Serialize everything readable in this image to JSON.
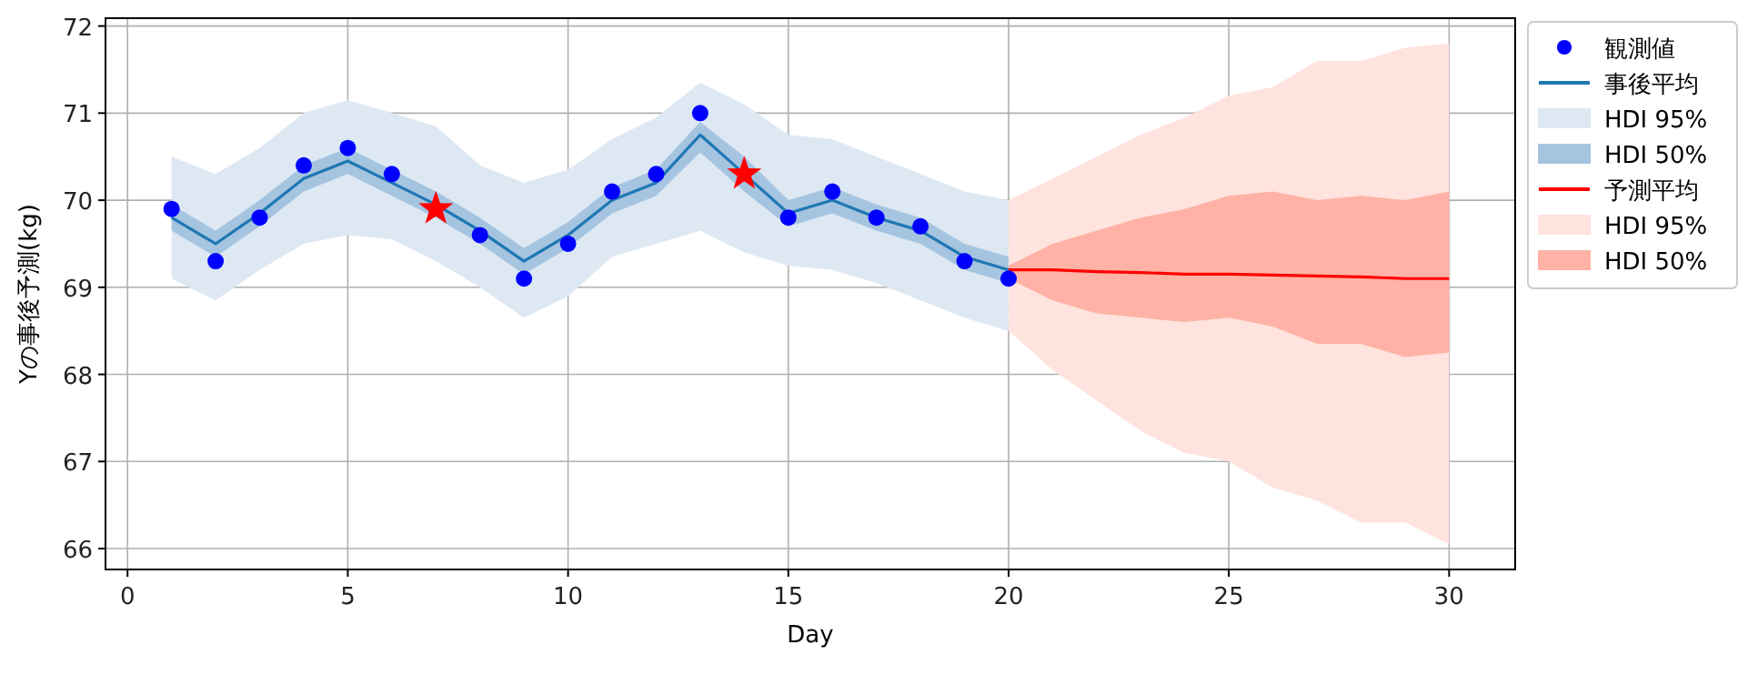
{
  "chart_data": {
    "type": "line",
    "xlabel": "Day",
    "ylabel": "Yの事後予測(kg)",
    "xlim": [
      -0.5,
      31.5
    ],
    "ylim": [
      65.76,
      72.09
    ],
    "xticks": [
      0,
      5,
      10,
      15,
      20,
      25,
      30
    ],
    "yticks": [
      66,
      67,
      68,
      69,
      70,
      71,
      72
    ],
    "grid": true,
    "legend": "top right",
    "series": [
      {
        "name": "HDI 95%",
        "type": "line",
        "color": "#dde8f3",
        "x": [
          1,
          2,
          3,
          4,
          5,
          6,
          7,
          8,
          9,
          10,
          11,
          12,
          13,
          14,
          15,
          16,
          17,
          18,
          19,
          20
        ],
        "values": [
          null,
          null,
          null,
          null,
          null,
          null,
          null,
          null,
          null,
          null,
          null,
          null,
          null,
          null,
          null,
          null,
          null,
          null,
          null,
          null
        ],
        "lower": [
          69.1,
          68.85,
          69.2,
          69.5,
          69.6,
          69.55,
          69.3,
          69.0,
          68.65,
          68.9,
          69.35,
          69.5,
          69.65,
          69.4,
          69.25,
          69.2,
          69.05,
          68.85,
          68.65,
          68.5
        ],
        "upper": [
          70.5,
          70.3,
          70.6,
          71.0,
          71.15,
          71.0,
          70.85,
          70.4,
          70.2,
          70.35,
          70.7,
          70.95,
          71.35,
          71.1,
          70.75,
          70.7,
          70.5,
          70.3,
          70.1,
          70.0
        ]
      },
      {
        "name": "HDI 50%",
        "type": "line",
        "color": "#a5c4e0",
        "x": [
          1,
          2,
          3,
          4,
          5,
          6,
          7,
          8,
          9,
          10,
          11,
          12,
          13,
          14,
          15,
          16,
          17,
          18,
          19,
          20
        ],
        "values": [
          null,
          null,
          null,
          null,
          null,
          null,
          null,
          null,
          null,
          null,
          null,
          null,
          null,
          null,
          null,
          null,
          null,
          null,
          null,
          null
        ],
        "lower": [
          69.65,
          69.35,
          69.7,
          70.1,
          70.3,
          70.05,
          69.8,
          69.5,
          69.15,
          69.45,
          69.85,
          70.05,
          70.55,
          70.1,
          69.7,
          69.85,
          69.65,
          69.5,
          69.2,
          69.05
        ],
        "upper": [
          69.95,
          69.65,
          70.0,
          70.4,
          70.6,
          70.35,
          70.1,
          69.8,
          69.45,
          69.75,
          70.15,
          70.35,
          70.9,
          70.5,
          70.0,
          70.15,
          69.95,
          69.8,
          69.5,
          69.35
        ]
      },
      {
        "name": "HDI 95%",
        "type": "line",
        "color": "#ffe3de",
        "x": [
          20,
          21,
          22,
          23,
          24,
          25,
          26,
          27,
          28,
          29,
          30
        ],
        "values": [
          null,
          null,
          null,
          null,
          null,
          null,
          null,
          null,
          null,
          null,
          null
        ],
        "lower": [
          68.5,
          68.05,
          67.7,
          67.35,
          67.1,
          67.0,
          66.7,
          66.55,
          66.3,
          66.3,
          66.05
        ],
        "upper": [
          70.0,
          70.25,
          70.5,
          70.75,
          70.95,
          71.2,
          71.3,
          71.6,
          71.6,
          71.75,
          71.8
        ]
      },
      {
        "name": "HDI 50%",
        "type": "line",
        "color": "#ffb2a5",
        "x": [
          20,
          21,
          22,
          23,
          24,
          25,
          26,
          27,
          28,
          29,
          30
        ],
        "values": [
          null,
          null,
          null,
          null,
          null,
          null,
          null,
          null,
          null,
          null,
          null
        ],
        "lower": [
          69.1,
          68.85,
          68.7,
          68.65,
          68.6,
          68.65,
          68.55,
          68.35,
          68.35,
          68.2,
          68.25
        ],
        "upper": [
          69.25,
          69.5,
          69.65,
          69.8,
          69.9,
          70.05,
          70.1,
          70.0,
          70.05,
          70.0,
          70.1
        ]
      },
      {
        "name": "事後平均",
        "type": "line",
        "color": "#1f77b4",
        "x": [
          1,
          2,
          3,
          4,
          5,
          6,
          7,
          8,
          9,
          10,
          11,
          12,
          13,
          14,
          15,
          16,
          17,
          18,
          19,
          20
        ],
        "values": [
          69.8,
          69.5,
          69.85,
          70.25,
          70.45,
          70.2,
          69.95,
          69.65,
          69.3,
          69.6,
          70.0,
          70.2,
          70.75,
          70.3,
          69.85,
          70.0,
          69.8,
          69.65,
          69.35,
          69.2
        ]
      },
      {
        "name": "予測平均",
        "type": "line",
        "color": "#ff0000",
        "x": [
          20,
          21,
          22,
          23,
          24,
          25,
          26,
          27,
          28,
          29,
          30
        ],
        "values": [
          69.2,
          69.2,
          69.18,
          69.17,
          69.15,
          69.15,
          69.14,
          69.13,
          69.12,
          69.1,
          69.1
        ]
      },
      {
        "name": "観測値",
        "type": "scatter",
        "marker": "circle",
        "color": "#0000ff",
        "x": [
          1,
          2,
          3,
          4,
          5,
          6,
          8,
          9,
          10,
          11,
          12,
          13,
          15,
          16,
          17,
          18,
          19,
          20
        ],
        "values": [
          69.9,
          69.3,
          69.8,
          70.4,
          70.6,
          70.3,
          69.6,
          69.1,
          69.5,
          70.1,
          70.3,
          71.0,
          69.8,
          70.1,
          69.8,
          69.7,
          69.3,
          69.1
        ]
      },
      {
        "type": "scatter",
        "marker": "star",
        "color": "#ff0000",
        "x": [
          7,
          14
        ],
        "values": [
          69.9,
          70.3
        ]
      }
    ]
  }
}
